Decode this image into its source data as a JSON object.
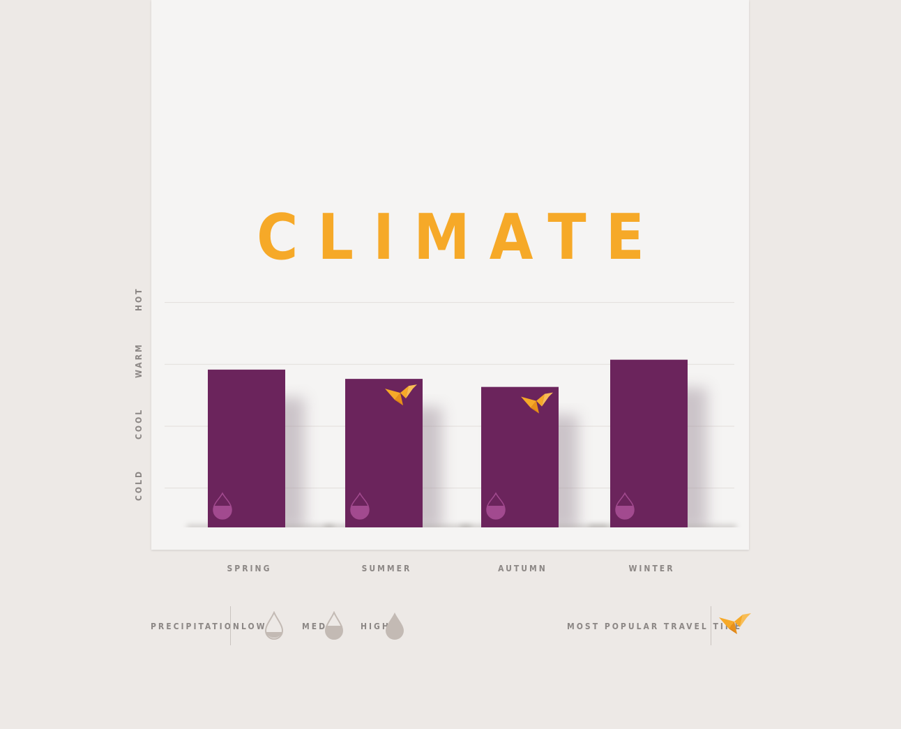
{
  "title": "CLIMATE",
  "chart_data": {
    "type": "bar",
    "categories": [
      "SPRING",
      "SUMMER",
      "AUTUMN",
      "WINTER"
    ],
    "values": [
      2.55,
      2.4,
      2.27,
      2.71
    ],
    "y_levels": [
      "COLD",
      "COOL",
      "WARM",
      "HOT"
    ],
    "ylim": [
      0,
      3.6
    ],
    "precipitation": [
      "med",
      "med",
      "med",
      "med"
    ],
    "popular_travel_time": [
      false,
      true,
      true,
      false
    ],
    "grid": true,
    "colors": {
      "bar": "#6b245c",
      "accent": "#f6a928",
      "drop": "#a24a8f",
      "legend_drop": "#c3bab4"
    }
  },
  "legend": {
    "precipitation_label": "PRECIPITATION",
    "low": "LOW",
    "med": "MED",
    "high": "HIGH",
    "popular_label": "MOST POPULAR TRAVEL TIME",
    "popular_icon": "origami-crane-icon"
  }
}
